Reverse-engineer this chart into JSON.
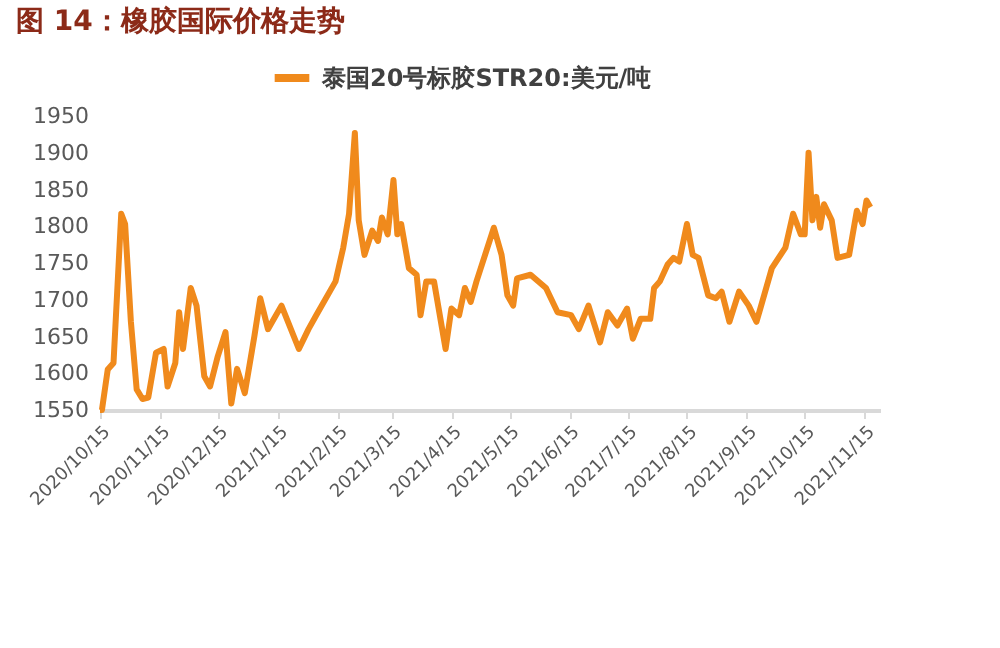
{
  "chart_data": {
    "type": "line",
    "title": "图 14：橡胶国际价格走势",
    "legend": "top",
    "x": [
      "2020-10-15",
      "2020-10-16",
      "2020-10-19",
      "2020-10-22",
      "2020-10-26",
      "2020-10-28",
      "2020-10-31",
      "2020-11-03",
      "2020-11-06",
      "2020-11-09",
      "2020-11-13",
      "2020-11-17",
      "2020-11-19",
      "2020-11-23",
      "2020-11-25",
      "2020-11-27",
      "2020-12-01",
      "2020-12-04",
      "2020-12-08",
      "2020-12-11",
      "2020-12-15",
      "2020-12-19",
      "2020-12-22",
      "2020-12-25",
      "2020-12-29",
      "2021-01-03",
      "2021-01-06",
      "2021-01-10",
      "2021-01-17",
      "2021-01-26",
      "2021-01-31",
      "2021-02-04",
      "2021-02-14",
      "2021-02-18",
      "2021-02-21",
      "2021-02-24",
      "2021-02-26",
      "2021-03-01",
      "2021-03-05",
      "2021-03-08",
      "2021-03-10",
      "2021-03-13",
      "2021-03-16",
      "2021-03-18",
      "2021-03-20",
      "2021-03-24",
      "2021-03-28",
      "2021-03-30",
      "2021-04-02",
      "2021-04-06",
      "2021-04-12",
      "2021-04-15",
      "2021-04-19",
      "2021-04-22",
      "2021-04-25",
      "2021-04-28",
      "2021-05-07",
      "2021-05-11",
      "2021-05-14",
      "2021-05-17",
      "2021-05-19",
      "2021-05-26",
      "2021-06-03",
      "2021-06-09",
      "2021-06-16",
      "2021-06-20",
      "2021-06-25",
      "2021-07-01",
      "2021-07-05",
      "2021-07-10",
      "2021-07-15",
      "2021-07-18",
      "2021-07-22",
      "2021-07-27",
      "2021-07-29",
      "2021-08-01",
      "2021-08-05",
      "2021-08-08",
      "2021-08-11",
      "2021-08-15",
      "2021-08-18",
      "2021-08-21",
      "2021-08-26",
      "2021-08-30",
      "2021-09-02",
      "2021-09-06",
      "2021-09-11",
      "2021-09-16",
      "2021-09-20",
      "2021-09-22",
      "2021-09-28",
      "2021-10-05",
      "2021-10-09",
      "2021-10-13",
      "2021-10-15",
      "2021-10-17",
      "2021-10-19",
      "2021-10-21",
      "2021-10-23",
      "2021-10-25",
      "2021-10-29",
      "2021-11-01",
      "2021-11-07",
      "2021-11-11",
      "2021-11-14",
      "2021-11-16",
      "2021-11-18"
    ],
    "series": [
      {
        "name": "泰国20号标胶STR20:美元/吨",
        "color": "#f08a1c",
        "values": [
          1550,
          1550,
          1605,
          1614,
          1817,
          1803,
          1670,
          1578,
          1565,
          1567,
          1628,
          1633,
          1582,
          1614,
          1683,
          1633,
          1716,
          1692,
          1596,
          1582,
          1623,
          1656,
          1559,
          1606,
          1573,
          1651,
          1702,
          1660,
          1692,
          1633,
          1660,
          1679,
          1725,
          1771,
          1817,
          1927,
          1808,
          1761,
          1794,
          1780,
          1812,
          1789,
          1863,
          1789,
          1803,
          1743,
          1734,
          1679,
          1725,
          1725,
          1633,
          1688,
          1679,
          1716,
          1697,
          1725,
          1798,
          1761,
          1706,
          1692,
          1729,
          1734,
          1716,
          1683,
          1679,
          1660,
          1692,
          1642,
          1683,
          1665,
          1688,
          1647,
          1674,
          1674,
          1716,
          1725,
          1748,
          1757,
          1752,
          1803,
          1761,
          1757,
          1706,
          1702,
          1711,
          1670,
          1711,
          1692,
          1670,
          1688,
          1743,
          1771,
          1817,
          1789,
          1789,
          1900,
          1808,
          1840,
          1798,
          1830,
          1808,
          1757,
          1761,
          1821,
          1803,
          1835,
          1826
        ]
      }
    ],
    "xlim": [
      "2020-10-15",
      "2021-11-23"
    ],
    "xticks": [
      {
        "value": "2020-10-15",
        "label": "2020/10/15"
      },
      {
        "value": "2020-11-15",
        "label": "2020/11/15"
      },
      {
        "value": "2020-12-15",
        "label": "2020/12/15"
      },
      {
        "value": "2021-01-15",
        "label": "2021/1/15"
      },
      {
        "value": "2021-02-15",
        "label": "2021/2/15"
      },
      {
        "value": "2021-03-15",
        "label": "2021/3/15"
      },
      {
        "value": "2021-04-15",
        "label": "2021/4/15"
      },
      {
        "value": "2021-05-15",
        "label": "2021/5/15"
      },
      {
        "value": "2021-06-15",
        "label": "2021/6/15"
      },
      {
        "value": "2021-07-15",
        "label": "2021/7/15"
      },
      {
        "value": "2021-08-15",
        "label": "2021/8/15"
      },
      {
        "value": "2021-09-15",
        "label": "2021/9/15"
      },
      {
        "value": "2021-10-15",
        "label": "2021/10/15"
      },
      {
        "value": "2021-11-15",
        "label": "2021/11/15"
      }
    ],
    "ylim": [
      1550,
      1950
    ],
    "yticks": [
      1550,
      1600,
      1650,
      1700,
      1750,
      1800,
      1850,
      1900,
      1950
    ],
    "grid": false
  }
}
